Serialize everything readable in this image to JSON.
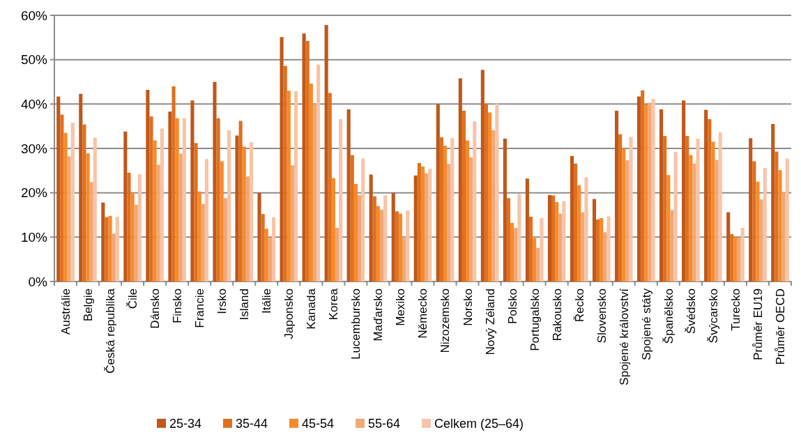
{
  "chart_data": {
    "type": "bar",
    "categories": [
      "Austrálie",
      "Belgie",
      "Česká republika",
      "Čile",
      "Dánsko",
      "Finsko",
      "Francie",
      "Irsko",
      "Island",
      "Itálie",
      "Japonsko",
      "Kanada",
      "Korea",
      "Lucembursko",
      "Maďarsko",
      "Mexiko",
      "Německo",
      "Nizozemsko",
      "Norsko",
      "Nový Zéland",
      "Polsko",
      "Portugalsko",
      "Rakousko",
      "Řecko",
      "Slovensko",
      "Spojené království",
      "Spojené státy",
      "Španělsko",
      "Švédsko",
      "Švýcarsko",
      "Turecko",
      "Průměr EU19",
      "Průměr OECD"
    ],
    "series": [
      {
        "name": "25-34",
        "color": "#c0581a",
        "values": [
          41.7,
          42.3,
          17.8,
          33.8,
          43.2,
          38.3,
          40.8,
          45.0,
          32.9,
          20.0,
          55.1,
          55.9,
          57.8,
          38.8,
          24.1,
          20.0,
          23.9,
          40.0,
          45.8,
          47.7,
          32.2,
          23.2,
          19.5,
          28.3,
          18.6,
          38.5,
          41.7,
          38.8,
          40.8,
          38.7,
          15.6,
          32.3,
          35.5
        ]
      },
      {
        "name": "35-44",
        "color": "#e0701e",
        "values": [
          37.6,
          35.4,
          14.5,
          24.5,
          37.2,
          44.0,
          31.2,
          36.8,
          36.2,
          15.2,
          48.6,
          54.2,
          42.5,
          28.5,
          19.2,
          15.8,
          26.7,
          32.5,
          38.5,
          40.1,
          18.8,
          14.6,
          19.4,
          26.6,
          14.0,
          33.2,
          43.1,
          32.8,
          32.8,
          36.6,
          10.7,
          27.1,
          29.3
        ]
      },
      {
        "name": "45-54",
        "color": "#f88a2a",
        "values": [
          33.5,
          28.9,
          14.8,
          20.0,
          31.8,
          36.8,
          20.3,
          27.1,
          30.4,
          11.9,
          43.0,
          44.6,
          23.3,
          22.0,
          17.0,
          15.3,
          25.9,
          30.6,
          31.8,
          38.1,
          13.2,
          9.8,
          17.9,
          21.7,
          14.3,
          30.0,
          39.9,
          24.0,
          28.5,
          31.5,
          10.0,
          22.5,
          25.1
        ]
      },
      {
        "name": "55-64",
        "color": "#f0a878",
        "values": [
          28.2,
          22.4,
          10.8,
          17.3,
          26.3,
          28.8,
          17.5,
          18.8,
          23.7,
          9.9,
          26.2,
          40.0,
          12.1,
          19.5,
          16.2,
          9.8,
          24.4,
          26.5,
          28.0,
          34.1,
          12.1,
          7.6,
          15.3,
          15.6,
          11.1,
          27.3,
          40.3,
          16.1,
          26.6,
          27.4,
          9.9,
          18.5,
          20.2
        ]
      },
      {
        "name": "Celkem (25–64)",
        "color": "#f8c4a8",
        "values": [
          35.8,
          32.4,
          14.6,
          24.2,
          34.5,
          36.8,
          27.6,
          34.1,
          31.4,
          14.5,
          42.9,
          48.9,
          36.6,
          27.7,
          19.4,
          16.0,
          25.4,
          32.3,
          36.1,
          40.1,
          19.7,
          14.3,
          18.1,
          23.5,
          14.7,
          32.6,
          41.2,
          29.2,
          32.2,
          33.6,
          12.1,
          25.6,
          27.7
        ]
      }
    ],
    "ylim": [
      0,
      60
    ],
    "yticks": [
      {
        "value": 0,
        "label": "0%"
      },
      {
        "value": 10,
        "label": "10%"
      },
      {
        "value": 20,
        "label": "20%"
      },
      {
        "value": 30,
        "label": "30%"
      },
      {
        "value": 40,
        "label": "40%"
      },
      {
        "value": 50,
        "label": "50%"
      },
      {
        "value": 60,
        "label": "60%"
      }
    ],
    "grid": "y",
    "legend": "bottom"
  }
}
